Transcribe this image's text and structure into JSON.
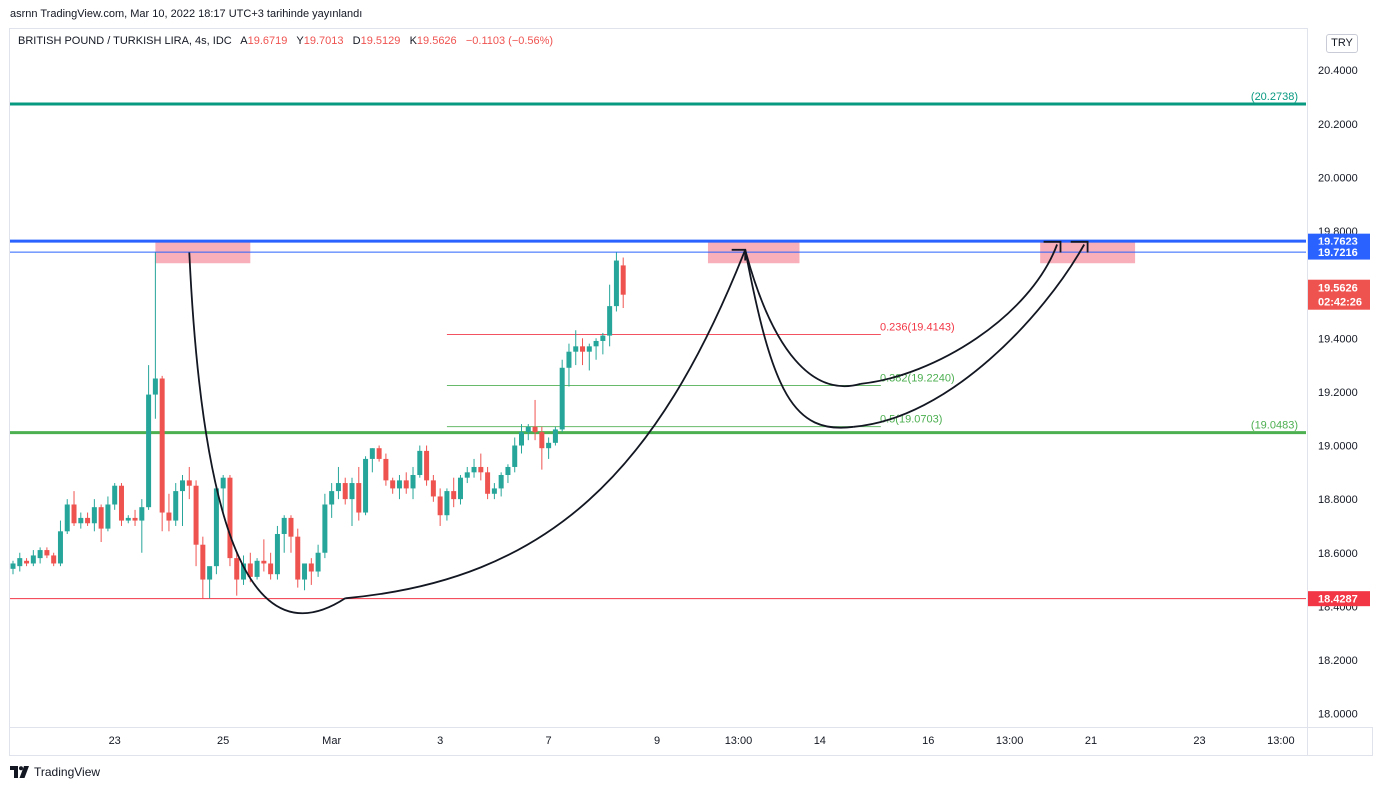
{
  "header": {
    "publish_text": "asrnn TradingView.com, Mar 10, 2022 18:17 UTC+3 tarihinde yayınlandı",
    "symbol_text": "BRITISH POUND / TURKISH LIRA, 4s, IDC",
    "ohlc": {
      "a_label": "A",
      "a_value": "19.6719",
      "y_label": "Y",
      "y_value": "19.7013",
      "d_label": "D",
      "d_value": "19.5129",
      "k_label": "K",
      "k_value": "19.5626",
      "change": "−0.1103 (−0.56%)"
    },
    "currency": "TRY"
  },
  "footer": {
    "logo_text": "TradingView"
  },
  "colors": {
    "up": "#26a69a",
    "down": "#ef5350",
    "blue": "#2962ff",
    "teal": "#089981",
    "green": "#4caf50",
    "red": "#f23645",
    "pink": "#f7a1ad"
  },
  "chart_data": {
    "type": "candlestick",
    "title": "BRITISH POUND / TURKISH LIRA, 4s, IDC",
    "ylim": [
      17.95,
      20.55
    ],
    "y_ticks": [
      "20.4000",
      "20.2000",
      "20.0000",
      "19.8000",
      "19.6000",
      "19.4000",
      "19.2000",
      "19.0000",
      "18.8000",
      "18.6000",
      "18.4000",
      "18.2000",
      "18.0000"
    ],
    "x_ticks": [
      {
        "label": "23",
        "bar": 15
      },
      {
        "label": "25",
        "bar": 31
      },
      {
        "label": "Mar",
        "bar": 47
      },
      {
        "label": "3",
        "bar": 63
      },
      {
        "label": "7",
        "bar": 79
      },
      {
        "label": "9",
        "bar": 95
      },
      {
        "label": "13:00",
        "bar": 107
      },
      {
        "label": "14",
        "bar": 119
      },
      {
        "label": "16",
        "bar": 135
      },
      {
        "label": "13:00",
        "bar": 147
      },
      {
        "label": "21",
        "bar": 159
      },
      {
        "label": "23",
        "bar": 175
      },
      {
        "label": "13:00",
        "bar": 187
      }
    ],
    "candles": [
      [
        18.54,
        18.57,
        18.52,
        18.56
      ],
      [
        18.55,
        18.6,
        18.53,
        18.58
      ],
      [
        18.57,
        18.58,
        18.55,
        18.56
      ],
      [
        18.56,
        18.61,
        18.55,
        18.59
      ],
      [
        18.58,
        18.62,
        18.56,
        18.61
      ],
      [
        18.61,
        18.62,
        18.58,
        18.59
      ],
      [
        18.59,
        18.6,
        18.55,
        18.56
      ],
      [
        18.56,
        18.72,
        18.55,
        18.68
      ],
      [
        18.68,
        18.8,
        18.67,
        18.78
      ],
      [
        18.78,
        18.83,
        18.7,
        18.71
      ],
      [
        18.71,
        18.75,
        18.69,
        18.73
      ],
      [
        18.73,
        18.75,
        18.7,
        18.71
      ],
      [
        18.71,
        18.8,
        18.68,
        18.77
      ],
      [
        18.77,
        18.78,
        18.64,
        18.69
      ],
      [
        18.69,
        18.81,
        18.68,
        18.78
      ],
      [
        18.78,
        18.86,
        18.76,
        18.85
      ],
      [
        18.85,
        18.86,
        18.7,
        18.72
      ],
      [
        18.72,
        18.74,
        18.71,
        18.73
      ],
      [
        18.73,
        18.76,
        18.7,
        18.72
      ],
      [
        18.72,
        18.8,
        18.6,
        18.77
      ],
      [
        18.77,
        19.3,
        18.76,
        19.19
      ],
      [
        19.19,
        19.72,
        19.1,
        19.25
      ],
      [
        19.25,
        19.26,
        18.68,
        18.75
      ],
      [
        18.75,
        18.82,
        18.68,
        18.72
      ],
      [
        18.72,
        18.86,
        18.7,
        18.83
      ],
      [
        18.83,
        18.89,
        18.7,
        18.87
      ],
      [
        18.87,
        18.92,
        18.8,
        18.85
      ],
      [
        18.85,
        18.87,
        18.55,
        18.63
      ],
      [
        18.63,
        18.66,
        18.43,
        18.5
      ],
      [
        18.5,
        18.54,
        18.43,
        18.55
      ],
      [
        18.55,
        18.85,
        18.52,
        18.84
      ],
      [
        18.84,
        18.89,
        18.75,
        18.88
      ],
      [
        18.88,
        18.89,
        18.55,
        18.58
      ],
      [
        18.58,
        18.6,
        18.44,
        18.5
      ],
      [
        18.5,
        18.59,
        18.48,
        18.56
      ],
      [
        18.56,
        18.6,
        18.49,
        18.51
      ],
      [
        18.51,
        18.58,
        18.5,
        18.57
      ],
      [
        18.57,
        18.65,
        18.53,
        18.56
      ],
      [
        18.56,
        18.6,
        18.5,
        18.52
      ],
      [
        18.52,
        18.7,
        18.5,
        18.67
      ],
      [
        18.67,
        18.74,
        18.6,
        18.73
      ],
      [
        18.73,
        18.74,
        18.6,
        18.66
      ],
      [
        18.66,
        18.69,
        18.47,
        18.5
      ],
      [
        18.5,
        18.55,
        18.46,
        18.56
      ],
      [
        18.56,
        18.58,
        18.48,
        18.53
      ],
      [
        18.53,
        18.63,
        18.51,
        18.6
      ],
      [
        18.6,
        18.82,
        18.58,
        18.78
      ],
      [
        18.78,
        18.86,
        18.73,
        18.83
      ],
      [
        18.83,
        18.92,
        18.8,
        18.86
      ],
      [
        18.86,
        18.88,
        18.78,
        18.8
      ],
      [
        18.8,
        18.88,
        18.7,
        18.86
      ],
      [
        18.86,
        18.92,
        18.72,
        18.75
      ],
      [
        18.75,
        18.96,
        18.74,
        18.95
      ],
      [
        18.95,
        18.99,
        18.9,
        18.99
      ],
      [
        18.99,
        19.0,
        18.94,
        18.95
      ],
      [
        18.95,
        18.97,
        18.85,
        18.87
      ],
      [
        18.87,
        18.88,
        18.82,
        18.84
      ],
      [
        18.84,
        18.89,
        18.8,
        18.87
      ],
      [
        18.87,
        18.9,
        18.82,
        18.84
      ],
      [
        18.84,
        18.92,
        18.8,
        18.89
      ],
      [
        18.89,
        19.0,
        18.88,
        18.98
      ],
      [
        18.98,
        19.0,
        18.85,
        18.87
      ],
      [
        18.87,
        18.89,
        18.79,
        18.81
      ],
      [
        18.81,
        18.84,
        18.7,
        18.74
      ],
      [
        18.74,
        18.84,
        18.72,
        18.83
      ],
      [
        18.83,
        18.88,
        18.77,
        18.8
      ],
      [
        18.8,
        18.89,
        18.78,
        18.88
      ],
      [
        18.88,
        18.92,
        18.86,
        18.9
      ],
      [
        18.9,
        18.95,
        18.88,
        18.92
      ],
      [
        18.92,
        18.97,
        18.87,
        18.9
      ],
      [
        18.9,
        18.92,
        18.8,
        18.82
      ],
      [
        18.82,
        18.86,
        18.8,
        18.84
      ],
      [
        18.84,
        18.9,
        18.81,
        18.89
      ],
      [
        18.89,
        18.93,
        18.86,
        18.92
      ],
      [
        18.92,
        19.03,
        18.9,
        19.0
      ],
      [
        19.0,
        19.08,
        18.97,
        19.05
      ],
      [
        19.05,
        19.08,
        19.02,
        19.07
      ],
      [
        19.07,
        19.17,
        19.02,
        19.05
      ],
      [
        19.05,
        19.07,
        18.91,
        18.99
      ],
      [
        18.99,
        19.03,
        18.95,
        19.01
      ],
      [
        19.01,
        19.07,
        19.0,
        19.06
      ],
      [
        19.06,
        19.32,
        19.05,
        19.29
      ],
      [
        19.29,
        19.38,
        19.22,
        19.35
      ],
      [
        19.35,
        19.43,
        19.3,
        19.37
      ],
      [
        19.37,
        19.4,
        19.3,
        19.35
      ],
      [
        19.35,
        19.38,
        19.28,
        19.37
      ],
      [
        19.37,
        19.4,
        19.32,
        19.39
      ],
      [
        19.39,
        19.42,
        19.34,
        19.41
      ],
      [
        19.41,
        19.6,
        19.37,
        19.52
      ],
      [
        19.52,
        19.72,
        19.5,
        19.69
      ],
      [
        19.6719,
        19.7013,
        19.5129,
        19.5626
      ]
    ],
    "horizontal_levels": [
      {
        "label": "(20.2738)",
        "value": 20.2738,
        "color": "#089981"
      },
      {
        "label": "19.7623",
        "value": 19.7623,
        "color": "#2962ff"
      },
      {
        "label": "19.7216",
        "value": 19.7216,
        "color": "#2962ff"
      },
      {
        "label": "(19.0483)",
        "value": 19.0483,
        "color": "#4caf50"
      },
      {
        "label": "18.4287",
        "value": 18.4287,
        "color": "#f23645"
      }
    ],
    "last_price": {
      "value": "19.5626",
      "countdown": "02:42:26"
    },
    "fibonacci": [
      {
        "label": "0.236(19.4143)",
        "value": 19.4143,
        "color": "#f23645"
      },
      {
        "label": "0.382(19.2240)",
        "value": 19.224,
        "color": "#4caf50"
      },
      {
        "label": "0.5(19.0703)",
        "value": 19.0703,
        "color": "#4caf50"
      }
    ]
  }
}
